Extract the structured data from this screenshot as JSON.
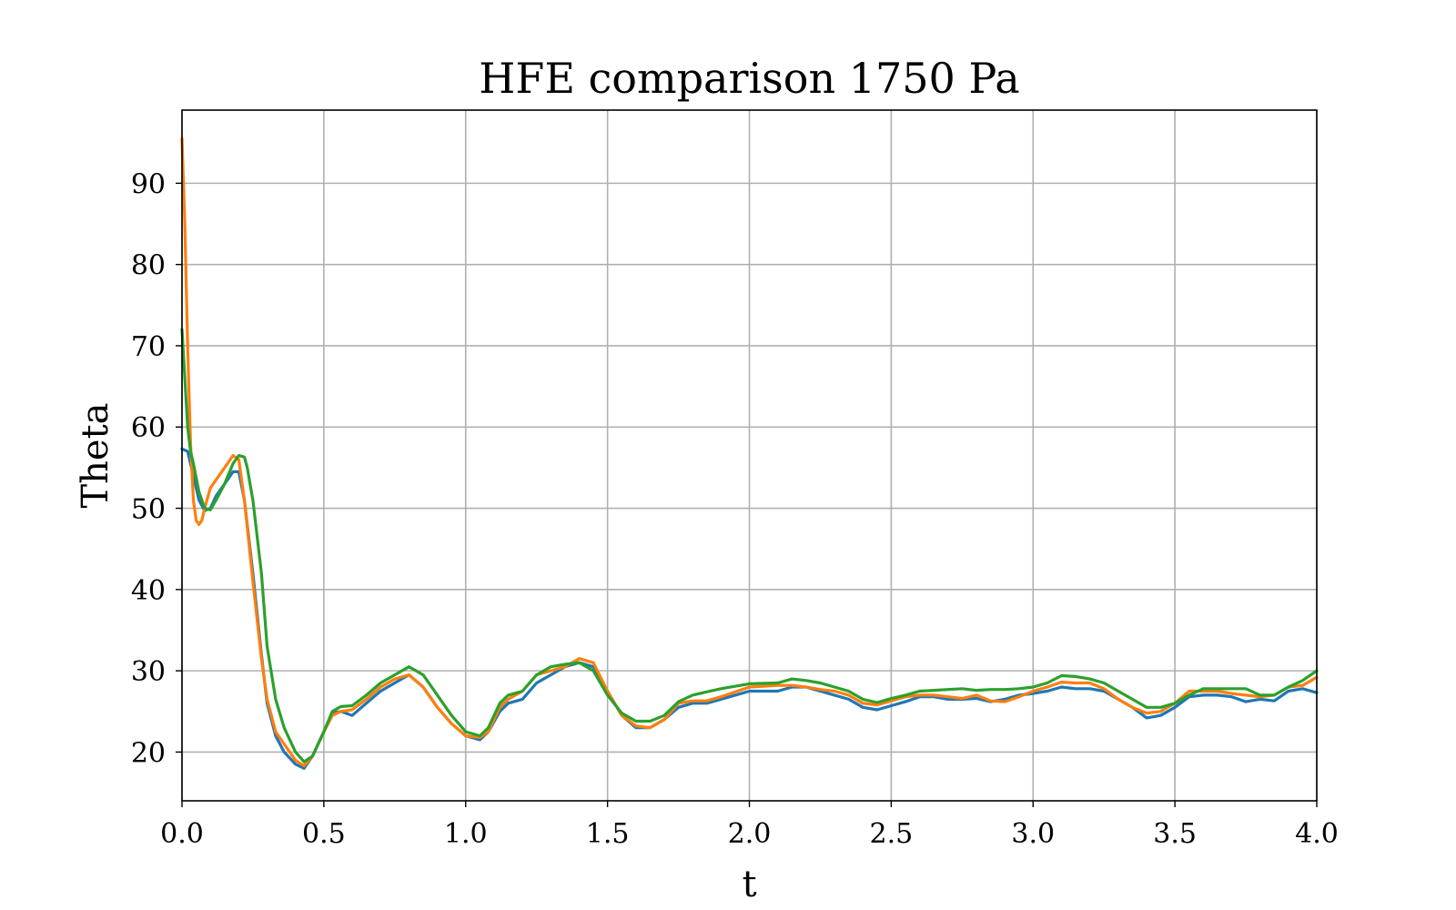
{
  "chart_data": {
    "type": "line",
    "title": "HFE comparison 1750 Pa",
    "xlabel": "t",
    "ylabel": "Theta",
    "xlim": [
      0.0,
      4.0
    ],
    "ylim": [
      14,
      99
    ],
    "xticks": [
      0.0,
      0.5,
      1.0,
      1.5,
      2.0,
      2.5,
      3.0,
      3.5,
      4.0
    ],
    "xtick_labels": [
      "0.0",
      "0.5",
      "1.0",
      "1.5",
      "2.0",
      "2.5",
      "3.0",
      "3.5",
      "4.0"
    ],
    "yticks": [
      20,
      30,
      40,
      50,
      60,
      70,
      80,
      90
    ],
    "ytick_labels": [
      "20",
      "30",
      "40",
      "50",
      "60",
      "70",
      "80",
      "90"
    ],
    "grid": true,
    "legend": false,
    "series": [
      {
        "color": "#1f77b4",
        "x": [
          0.0,
          0.02,
          0.04,
          0.06,
          0.08,
          0.1,
          0.12,
          0.15,
          0.18,
          0.2,
          0.22,
          0.25,
          0.28,
          0.3,
          0.33,
          0.36,
          0.4,
          0.43,
          0.46,
          0.5,
          0.53,
          0.56,
          0.6,
          0.65,
          0.7,
          0.75,
          0.8,
          0.85,
          0.9,
          0.95,
          1.0,
          1.05,
          1.08,
          1.12,
          1.15,
          1.2,
          1.25,
          1.3,
          1.35,
          1.4,
          1.45,
          1.5,
          1.55,
          1.6,
          1.65,
          1.7,
          1.75,
          1.8,
          1.85,
          1.9,
          2.0,
          2.1,
          2.15,
          2.2,
          2.25,
          2.3,
          2.35,
          2.4,
          2.45,
          2.5,
          2.55,
          2.6,
          2.65,
          2.7,
          2.75,
          2.8,
          2.85,
          2.9,
          2.95,
          3.0,
          3.05,
          3.1,
          3.15,
          3.2,
          3.25,
          3.3,
          3.35,
          3.4,
          3.45,
          3.5,
          3.55,
          3.6,
          3.65,
          3.7,
          3.75,
          3.8,
          3.85,
          3.9,
          3.95,
          4.0
        ],
        "y": [
          57.3,
          57.0,
          54.0,
          51.0,
          49.7,
          50.0,
          51.5,
          53.0,
          54.5,
          54.5,
          51.0,
          42.0,
          32.0,
          26.0,
          22.0,
          20.0,
          18.5,
          18.0,
          19.5,
          22.5,
          24.8,
          25.0,
          24.5,
          26.0,
          27.5,
          28.5,
          29.5,
          28.0,
          25.5,
          23.5,
          22.0,
          21.5,
          22.5,
          25.0,
          26.0,
          26.5,
          28.5,
          29.5,
          30.5,
          31.0,
          30.5,
          27.5,
          24.5,
          23.0,
          23.0,
          24.0,
          25.5,
          26.0,
          26.0,
          26.5,
          27.5,
          27.5,
          28.0,
          28.0,
          27.5,
          27.0,
          26.5,
          25.5,
          25.2,
          25.7,
          26.2,
          26.8,
          26.8,
          26.5,
          26.5,
          26.6,
          26.2,
          26.5,
          27.0,
          27.2,
          27.5,
          28.0,
          27.8,
          27.8,
          27.5,
          26.5,
          25.5,
          24.2,
          24.5,
          25.5,
          26.8,
          27.0,
          27.0,
          26.8,
          26.2,
          26.5,
          26.3,
          27.5,
          27.8,
          27.3
        ]
      },
      {
        "color": "#ff7f0e",
        "x": [
          0.0,
          0.01,
          0.02,
          0.03,
          0.04,
          0.05,
          0.06,
          0.07,
          0.08,
          0.1,
          0.12,
          0.15,
          0.18,
          0.2,
          0.22,
          0.25,
          0.28,
          0.3,
          0.33,
          0.36,
          0.4,
          0.43,
          0.46,
          0.5,
          0.53,
          0.56,
          0.6,
          0.65,
          0.7,
          0.75,
          0.8,
          0.85,
          0.9,
          0.95,
          1.0,
          1.05,
          1.08,
          1.12,
          1.15,
          1.2,
          1.25,
          1.3,
          1.35,
          1.4,
          1.45,
          1.5,
          1.55,
          1.6,
          1.65,
          1.7,
          1.75,
          1.8,
          1.85,
          1.9,
          2.0,
          2.1,
          2.15,
          2.2,
          2.25,
          2.3,
          2.35,
          2.4,
          2.45,
          2.5,
          2.55,
          2.6,
          2.65,
          2.7,
          2.75,
          2.8,
          2.85,
          2.9,
          2.95,
          3.0,
          3.05,
          3.1,
          3.15,
          3.2,
          3.25,
          3.3,
          3.35,
          3.4,
          3.45,
          3.5,
          3.55,
          3.6,
          3.65,
          3.7,
          3.75,
          3.8,
          3.85,
          3.9,
          3.95,
          4.0
        ],
        "y": [
          95.5,
          85.0,
          70.0,
          58.0,
          51.0,
          48.5,
          48.0,
          48.5,
          50.0,
          52.5,
          53.5,
          55.0,
          56.5,
          56.0,
          51.0,
          41.0,
          31.5,
          26.5,
          22.5,
          21.0,
          19.0,
          18.3,
          19.5,
          22.5,
          24.5,
          25.0,
          25.2,
          26.5,
          28.0,
          29.0,
          29.5,
          28.0,
          25.5,
          23.5,
          22.0,
          21.8,
          22.5,
          25.5,
          26.5,
          27.5,
          29.5,
          30.0,
          30.5,
          31.5,
          31.0,
          27.5,
          24.5,
          23.2,
          23.0,
          24.0,
          26.0,
          26.3,
          26.3,
          26.8,
          28.0,
          28.2,
          28.2,
          28.0,
          27.7,
          27.5,
          27.0,
          26.0,
          25.8,
          26.3,
          26.8,
          27.0,
          27.0,
          26.8,
          26.6,
          27.0,
          26.3,
          26.2,
          26.8,
          27.5,
          28.0,
          28.6,
          28.5,
          28.5,
          27.8,
          26.5,
          25.5,
          24.8,
          25.0,
          26.0,
          27.5,
          27.5,
          27.5,
          27.2,
          27.0,
          26.8,
          27.0,
          28.0,
          28.2,
          29.2
        ]
      },
      {
        "color": "#2ca02c",
        "x": [
          0.0,
          0.01,
          0.02,
          0.03,
          0.04,
          0.06,
          0.08,
          0.1,
          0.12,
          0.15,
          0.18,
          0.2,
          0.22,
          0.23,
          0.25,
          0.28,
          0.3,
          0.33,
          0.36,
          0.4,
          0.43,
          0.46,
          0.5,
          0.53,
          0.56,
          0.6,
          0.65,
          0.7,
          0.75,
          0.8,
          0.85,
          0.9,
          0.95,
          1.0,
          1.05,
          1.08,
          1.12,
          1.15,
          1.2,
          1.25,
          1.3,
          1.35,
          1.4,
          1.45,
          1.5,
          1.55,
          1.6,
          1.65,
          1.7,
          1.75,
          1.8,
          1.85,
          1.9,
          2.0,
          2.1,
          2.15,
          2.2,
          2.25,
          2.3,
          2.35,
          2.4,
          2.45,
          2.5,
          2.55,
          2.6,
          2.65,
          2.7,
          2.75,
          2.8,
          2.85,
          2.9,
          2.95,
          3.0,
          3.05,
          3.1,
          3.15,
          3.2,
          3.25,
          3.3,
          3.35,
          3.4,
          3.45,
          3.5,
          3.55,
          3.6,
          3.65,
          3.7,
          3.75,
          3.8,
          3.85,
          3.9,
          3.95,
          4.0
        ],
        "y": [
          72.0,
          66.0,
          60.0,
          57.0,
          55.5,
          52.0,
          50.0,
          49.8,
          51.0,
          53.0,
          55.5,
          56.5,
          56.3,
          55.0,
          51.0,
          42.0,
          33.0,
          26.5,
          23.0,
          20.0,
          18.8,
          19.5,
          22.5,
          25.0,
          25.6,
          25.7,
          27.0,
          28.5,
          29.5,
          30.5,
          29.5,
          27.0,
          24.5,
          22.5,
          22.0,
          23.0,
          26.0,
          27.0,
          27.5,
          29.5,
          30.5,
          30.8,
          31.0,
          30.0,
          27.0,
          24.8,
          23.8,
          23.8,
          24.5,
          26.2,
          27.0,
          27.4,
          27.8,
          28.4,
          28.5,
          29.0,
          28.8,
          28.5,
          28.0,
          27.5,
          26.5,
          26.1,
          26.6,
          27.0,
          27.5,
          27.6,
          27.7,
          27.8,
          27.6,
          27.7,
          27.7,
          27.8,
          28.0,
          28.5,
          29.4,
          29.3,
          29.0,
          28.5,
          27.5,
          26.5,
          25.5,
          25.5,
          26.0,
          27.0,
          27.8,
          27.8,
          27.8,
          27.8,
          27.0,
          27.0,
          28.0,
          28.8,
          30.0
        ]
      }
    ]
  }
}
